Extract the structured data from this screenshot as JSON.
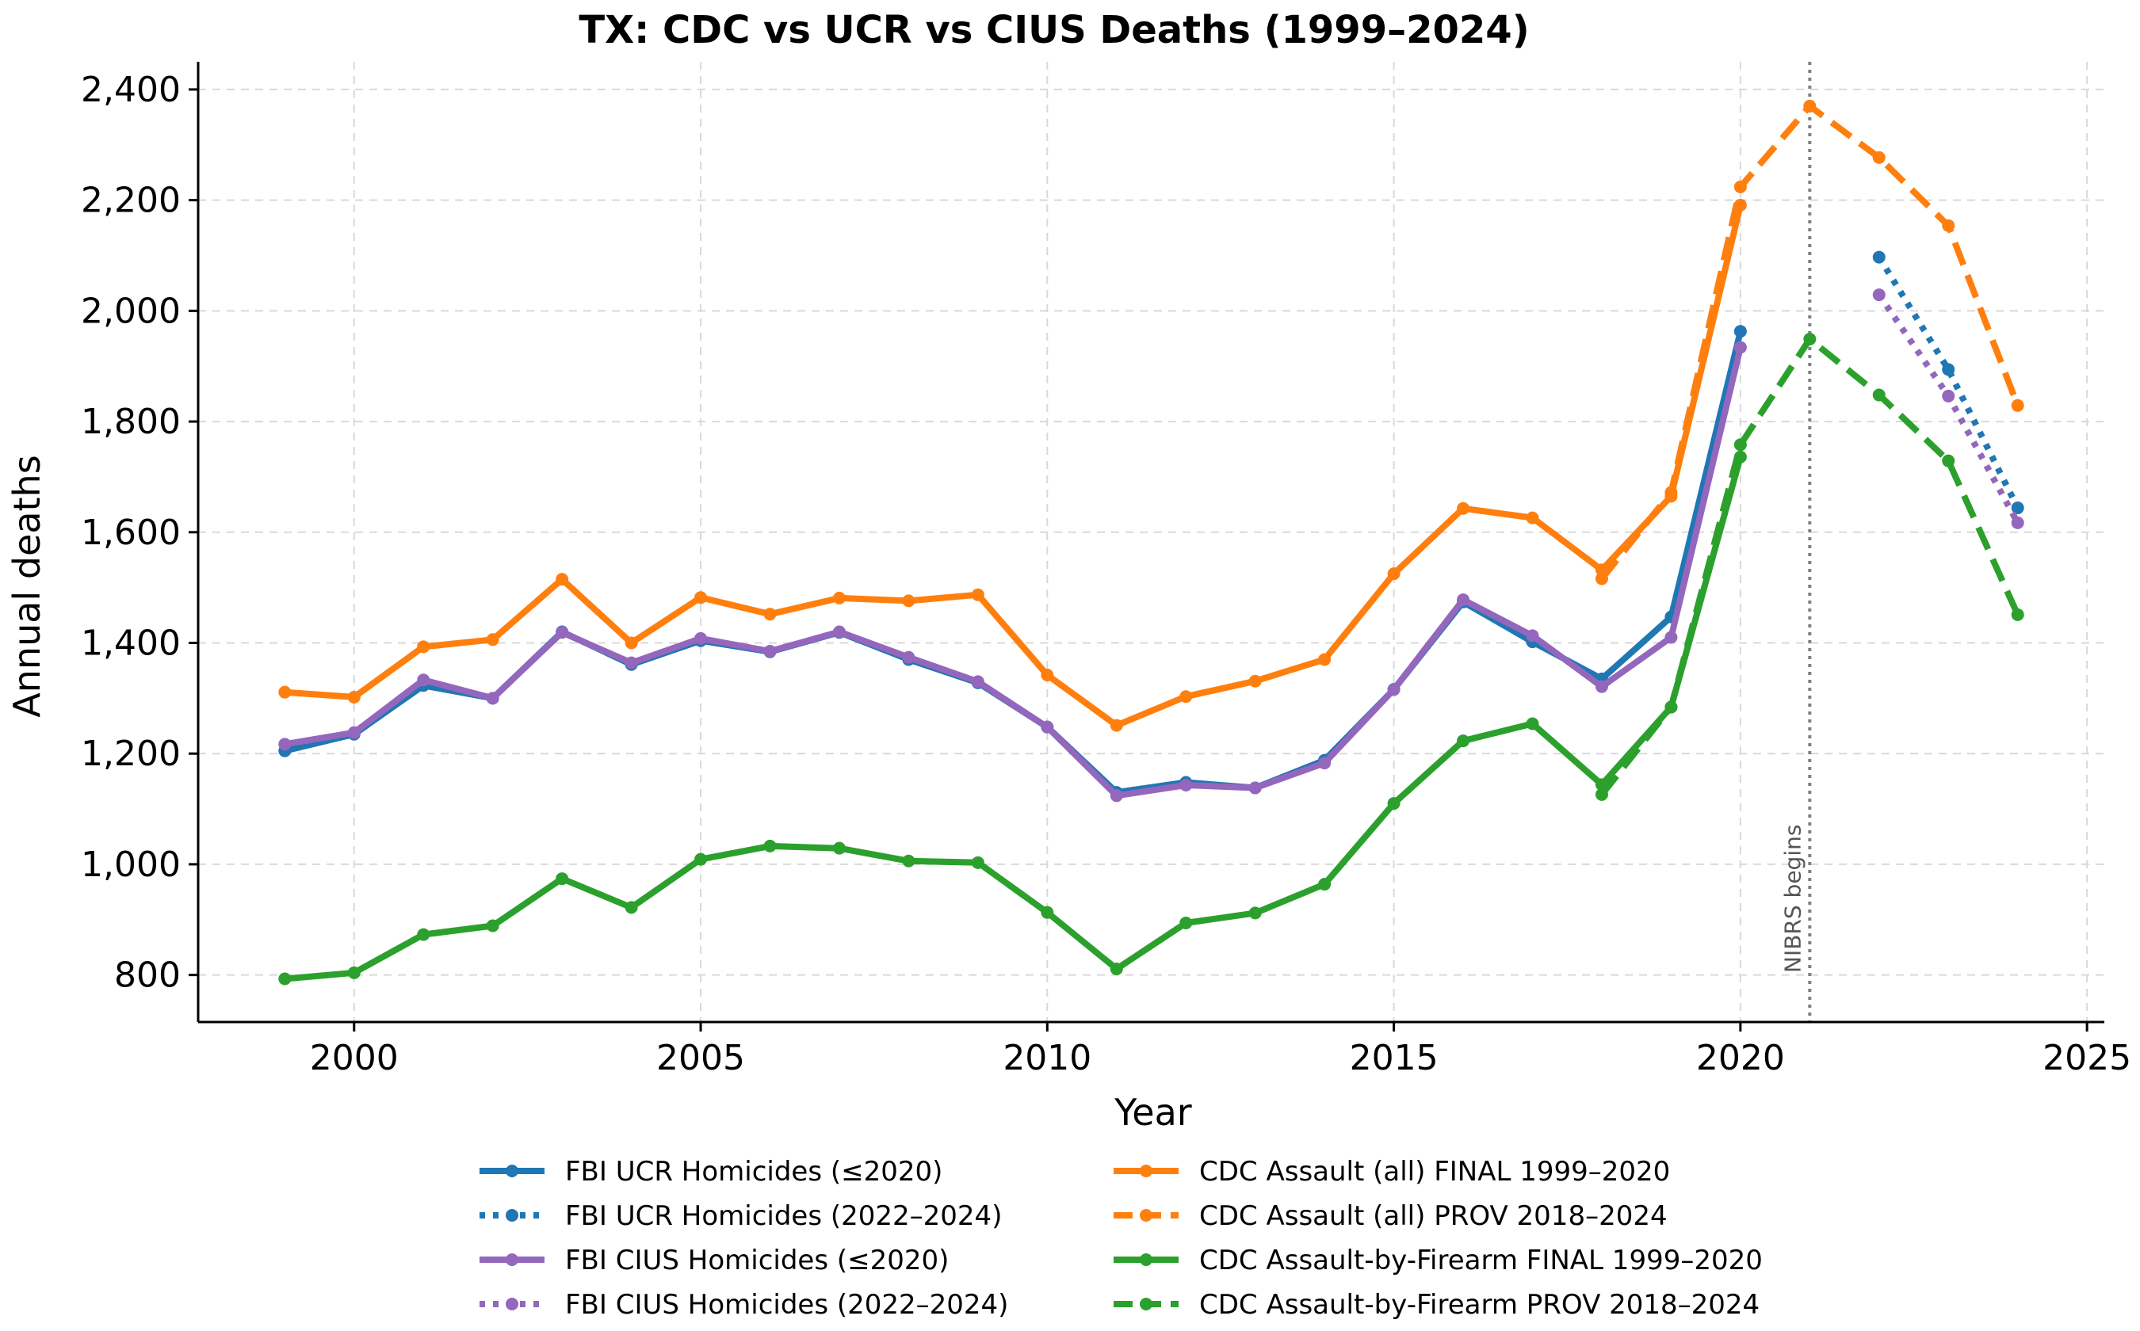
{
  "chart_data": {
    "type": "line",
    "title": "TX: CDC vs UCR vs CIUS Deaths (1999–2024)",
    "xlabel": "Year",
    "ylabel": "Annual deaths",
    "xlim": [
      1997.75,
      2025.25
    ],
    "ylim": [
      715,
      2450
    ],
    "xticks": [
      2000,
      2005,
      2010,
      2015,
      2020,
      2025
    ],
    "xtick_labels": [
      "2000",
      "2005",
      "2010",
      "2015",
      "2020",
      "2025"
    ],
    "yticks": [
      800,
      1000,
      1200,
      1400,
      1600,
      1800,
      2000,
      2200,
      2400
    ],
    "ytick_labels": [
      "800",
      "1,000",
      "1,200",
      "1,400",
      "1,600",
      "1,800",
      "2,000",
      "2,200",
      "2,400"
    ],
    "grid": true,
    "legend_position": "below chart, two columns",
    "annotation": {
      "text": "NIBRS begins",
      "x": 2021
    },
    "series": [
      {
        "name": "FBI UCR Homicides (≤2020)",
        "color": "#1f77b4",
        "style": "solid",
        "x": [
          1999,
          2000,
          2001,
          2002,
          2003,
          2004,
          2005,
          2006,
          2007,
          2008,
          2009,
          2010,
          2011,
          2012,
          2013,
          2014,
          2015,
          2016,
          2017,
          2018,
          2019,
          2020
        ],
        "y": [
          1205,
          1235,
          1323,
          1300,
          1420,
          1361,
          1404,
          1384,
          1419,
          1370,
          1328,
          1248,
          1130,
          1148,
          1138,
          1188,
          1316,
          1474,
          1402,
          1335,
          1447,
          1963
        ]
      },
      {
        "name": "FBI UCR Homicides (2022–2024)",
        "color": "#1f77b4",
        "style": "dotted",
        "x": [
          2022,
          2023,
          2024
        ],
        "y": [
          2097,
          1894,
          1644
        ]
      },
      {
        "name": "FBI CIUS Homicides (≤2020)",
        "color": "#9467bd",
        "style": "solid",
        "x": [
          1999,
          2000,
          2001,
          2002,
          2003,
          2004,
          2005,
          2006,
          2007,
          2008,
          2009,
          2010,
          2011,
          2012,
          2013,
          2014,
          2015,
          2016,
          2017,
          2018,
          2019,
          2020
        ],
        "y": [
          1217,
          1238,
          1333,
          1300,
          1419,
          1364,
          1408,
          1385,
          1420,
          1374,
          1330,
          1248,
          1124,
          1143,
          1138,
          1183,
          1316,
          1478,
          1413,
          1321,
          1410,
          1934
        ]
      },
      {
        "name": "FBI CIUS Homicides (2022–2024)",
        "color": "#9467bd",
        "style": "dotted",
        "x": [
          2022,
          2023,
          2024
        ],
        "y": [
          2029,
          1846,
          1617
        ]
      },
      {
        "name": "CDC Assault (all) FINAL 1999–2020",
        "color": "#ff7f0e",
        "style": "solid",
        "x": [
          1999,
          2000,
          2001,
          2002,
          2003,
          2004,
          2005,
          2006,
          2007,
          2008,
          2009,
          2010,
          2011,
          2012,
          2013,
          2014,
          2015,
          2016,
          2017,
          2018,
          2019,
          2020
        ],
        "y": [
          1311,
          1302,
          1393,
          1406,
          1515,
          1400,
          1482,
          1452,
          1481,
          1476,
          1487,
          1342,
          1251,
          1303,
          1331,
          1370,
          1525,
          1643,
          1626,
          1532,
          1665,
          2191
        ]
      },
      {
        "name": "CDC Assault (all) PROV 2018–2024",
        "color": "#ff7f0e",
        "style": "dashed",
        "x": [
          2018,
          2019,
          2020,
          2021,
          2022,
          2023,
          2024
        ],
        "y": [
          1516,
          1672,
          2224,
          2370,
          2277,
          2154,
          1829
        ]
      },
      {
        "name": "CDC Assault-by-Firearm FINAL 1999–2020",
        "color": "#2ca02c",
        "style": "solid",
        "x": [
          1999,
          2000,
          2001,
          2002,
          2003,
          2004,
          2005,
          2006,
          2007,
          2008,
          2009,
          2010,
          2011,
          2012,
          2013,
          2014,
          2015,
          2016,
          2017,
          2018,
          2019,
          2020
        ],
        "y": [
          793,
          804,
          873,
          889,
          974,
          922,
          1009,
          1033,
          1029,
          1006,
          1003,
          913,
          811,
          894,
          912,
          964,
          1110,
          1223,
          1254,
          1144,
          1284,
          1736
        ]
      },
      {
        "name": "CDC Assault-by-Firearm PROV 2018–2024",
        "color": "#2ca02c",
        "style": "dashed",
        "x": [
          2018,
          2019,
          2020,
          2021,
          2022,
          2023,
          2024
        ],
        "y": [
          1126,
          1284,
          1758,
          1949,
          1848,
          1729,
          1451
        ]
      }
    ]
  }
}
